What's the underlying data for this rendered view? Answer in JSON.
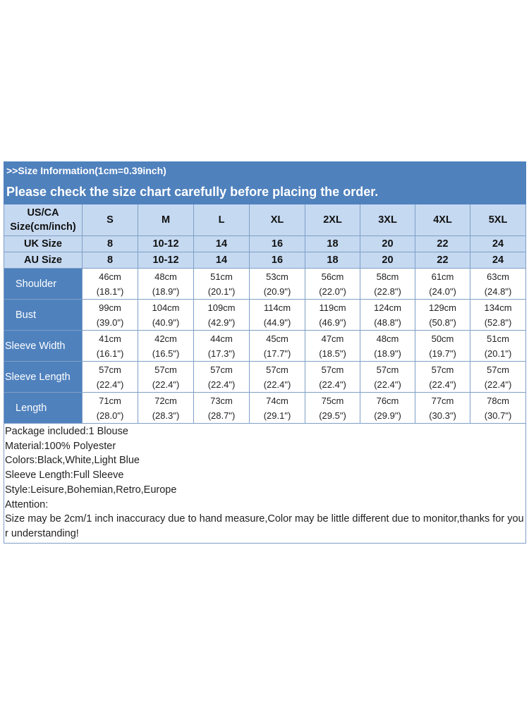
{
  "header": {
    "info": ">>Size Information(1cm=0.39inch)",
    "note": "Please check the size chart carefully before placing the order."
  },
  "table": {
    "corner_line1": "US/CA",
    "corner_line2": "Size(cm/inch)",
    "sizes": [
      "S",
      "M",
      "L",
      "XL",
      "2XL",
      "3XL",
      "4XL",
      "5XL"
    ],
    "uk_label": "UK Size",
    "uk": [
      "8",
      "10-12",
      "14",
      "16",
      "18",
      "20",
      "22",
      "24"
    ],
    "au_label": "AU Size",
    "au": [
      "8",
      "10-12",
      "14",
      "16",
      "18",
      "20",
      "22",
      "24"
    ],
    "rows": [
      {
        "label": "Shoulder",
        "cm": [
          "46cm",
          "48cm",
          "51cm",
          "53cm",
          "56cm",
          "58cm",
          "61cm",
          "63cm"
        ],
        "inch": [
          "(18.1\")",
          "(18.9\")",
          "(20.1\")",
          "(20.9\")",
          "(22.0\")",
          "(22.8\")",
          "(24.0\")",
          "(24.8\")"
        ]
      },
      {
        "label": "Bust",
        "cm": [
          "99cm",
          "104cm",
          "109cm",
          "114cm",
          "119cm",
          "124cm",
          "129cm",
          "134cm"
        ],
        "inch": [
          "(39.0\")",
          "(40.9\")",
          "(42.9\")",
          "(44.9\")",
          "(46.9\")",
          "(48.8\")",
          "(50.8\")",
          "(52.8\")"
        ]
      },
      {
        "label": "Sleeve Width",
        "cm": [
          "41cm",
          "42cm",
          "44cm",
          "45cm",
          "47cm",
          "48cm",
          "50cm",
          "51cm"
        ],
        "inch": [
          "(16.1\")",
          "(16.5\")",
          "(17.3\")",
          "(17.7\")",
          "(18.5\")",
          "(18.9\")",
          "(19.7\")",
          "(20.1\")"
        ]
      },
      {
        "label": "Sleeve Length",
        "cm": [
          "57cm",
          "57cm",
          "57cm",
          "57cm",
          "57cm",
          "57cm",
          "57cm",
          "57cm"
        ],
        "inch": [
          "(22.4\")",
          "(22.4\")",
          "(22.4\")",
          "(22.4\")",
          "(22.4\")",
          "(22.4\")",
          "(22.4\")",
          "(22.4\")"
        ]
      },
      {
        "label": "Length",
        "cm": [
          "71cm",
          "72cm",
          "73cm",
          "74cm",
          "75cm",
          "76cm",
          "77cm",
          "78cm"
        ],
        "inch": [
          "(28.0\")",
          "(28.3\")",
          "(28.7\")",
          "(29.1\")",
          "(29.5\")",
          "(29.9\")",
          "(30.3\")",
          "(30.7\")"
        ]
      }
    ]
  },
  "notes": [
    "Package included:1 Blouse",
    "Material:100% Polyester",
    "Colors:Black,White,Light Blue",
    "Sleeve Length:Full Sleeve",
    "Style:Leisure,Bohemian,Retro,Europe",
    "Attention:",
    "Size may be 2cm/1 inch inaccuracy due to hand measure,Color may be little different due to monitor,thanks for your understanding!"
  ],
  "colors": {
    "header_blue": "#4f81bd",
    "light_blue": "#c5d9f1",
    "grid": "#7f9fc6"
  }
}
